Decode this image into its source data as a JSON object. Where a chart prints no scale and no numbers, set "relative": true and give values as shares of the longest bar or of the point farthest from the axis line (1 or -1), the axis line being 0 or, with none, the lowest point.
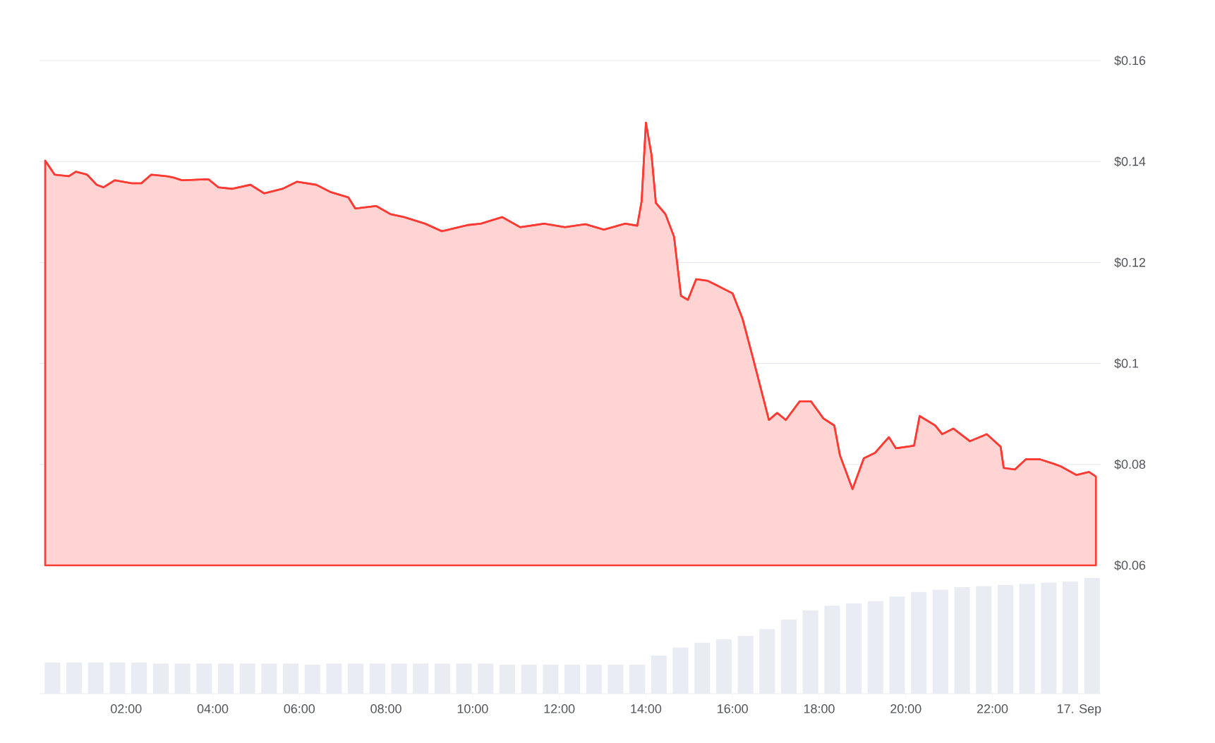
{
  "chart_data": [
    {
      "type": "area",
      "color": "#ff3a33",
      "grid": "y",
      "tick_labels": "y",
      "xlim": [
        0,
        24.5
      ],
      "ylim": [
        0.06,
        0.16
      ],
      "yticks": [
        {
          "value": 0.06,
          "label": "$0.06"
        },
        {
          "value": 0.08,
          "label": "$0.08"
        },
        {
          "value": 0.1,
          "label": "$0.1"
        },
        {
          "value": 0.12,
          "label": "$0.12"
        },
        {
          "value": 0.14,
          "label": "$0.14"
        },
        {
          "value": 0.16,
          "label": "$0.16"
        }
      ],
      "x": [
        0.13,
        0.35,
        0.68,
        0.84,
        1.1,
        1.32,
        1.48,
        1.74,
        2.13,
        2.35,
        2.58,
        2.94,
        3.1,
        3.29,
        3.9,
        4.13,
        4.45,
        4.87,
        5.19,
        5.61,
        5.94,
        6.39,
        6.71,
        7.13,
        7.29,
        7.77,
        8.1,
        8.42,
        8.9,
        9.29,
        9.87,
        10.19,
        10.68,
        11.1,
        11.65,
        12.13,
        12.6,
        13.03,
        13.52,
        13.8,
        13.9,
        14.0,
        14.13,
        14.23,
        14.45,
        14.65,
        14.81,
        14.97,
        15.16,
        15.42,
        15.68,
        16.0,
        16.23,
        16.48,
        16.84,
        17.03,
        17.23,
        17.55,
        17.81,
        18.1,
        18.35,
        18.48,
        18.77,
        19.03,
        19.29,
        19.61,
        19.77,
        20.19,
        20.32,
        20.68,
        20.84,
        21.1,
        21.48,
        21.87,
        22.19,
        22.26,
        22.52,
        22.77,
        23.1,
        23.42,
        23.58,
        23.94,
        24.23,
        24.39
      ],
      "values": [
        0.1402,
        0.1374,
        0.1371,
        0.138,
        0.1374,
        0.1354,
        0.1349,
        0.1363,
        0.1357,
        0.1357,
        0.1374,
        0.1371,
        0.1368,
        0.1363,
        0.1365,
        0.1349,
        0.1346,
        0.1354,
        0.1337,
        0.1346,
        0.136,
        0.1354,
        0.134,
        0.1329,
        0.1307,
        0.1312,
        0.1296,
        0.129,
        0.1277,
        0.1262,
        0.1274,
        0.1277,
        0.129,
        0.127,
        0.1277,
        0.127,
        0.1276,
        0.1265,
        0.1277,
        0.1273,
        0.1321,
        0.1477,
        0.1413,
        0.1318,
        0.1296,
        0.1251,
        0.1134,
        0.1126,
        0.1167,
        0.1164,
        0.1153,
        0.1139,
        0.1089,
        0.1008,
        0.0888,
        0.0902,
        0.0888,
        0.0925,
        0.0925,
        0.0891,
        0.0877,
        0.0818,
        0.0751,
        0.0812,
        0.0823,
        0.0854,
        0.0832,
        0.0837,
        0.0896,
        0.0877,
        0.086,
        0.0871,
        0.0846,
        0.086,
        0.0835,
        0.0793,
        0.079,
        0.081,
        0.081,
        0.0801,
        0.0796,
        0.0779,
        0.0785,
        0.0776
      ]
    },
    {
      "type": "bar",
      "relative": true,
      "color": "#e9edf3",
      "tick_labels": "x",
      "xlim": [
        0,
        24.5
      ],
      "xticks": [
        {
          "value": 2,
          "label": "02:00"
        },
        {
          "value": 4,
          "label": "04:00"
        },
        {
          "value": 6,
          "label": "06:00"
        },
        {
          "value": 8,
          "label": "08:00"
        },
        {
          "value": 10,
          "label": "10:00"
        },
        {
          "value": 12,
          "label": "12:00"
        },
        {
          "value": 14,
          "label": "14:00"
        },
        {
          "value": 16,
          "label": "16:00"
        },
        {
          "value": 18,
          "label": "18:00"
        },
        {
          "value": 20,
          "label": "20:00"
        },
        {
          "value": 22,
          "label": "22:00"
        },
        {
          "value": 24,
          "label": "17. Sep"
        }
      ],
      "x": [
        0.3,
        0.8,
        1.3,
        1.8,
        2.3,
        2.8,
        3.3,
        3.8,
        4.3,
        4.8,
        5.3,
        5.8,
        6.3,
        6.8,
        7.3,
        7.8,
        8.3,
        8.8,
        9.3,
        9.8,
        10.3,
        10.8,
        11.3,
        11.8,
        12.3,
        12.8,
        13.3,
        13.8,
        14.3,
        14.8,
        15.3,
        15.8,
        16.3,
        16.8,
        17.3,
        17.8,
        18.3,
        18.8,
        19.3,
        19.8,
        20.3,
        20.8,
        21.3,
        21.8,
        22.3,
        22.8,
        23.3,
        23.8,
        24.3
      ],
      "values": [
        0.27,
        0.27,
        0.27,
        0.27,
        0.27,
        0.26,
        0.26,
        0.26,
        0.26,
        0.26,
        0.26,
        0.26,
        0.25,
        0.26,
        0.26,
        0.26,
        0.26,
        0.26,
        0.26,
        0.26,
        0.26,
        0.25,
        0.25,
        0.25,
        0.25,
        0.25,
        0.25,
        0.25,
        0.33,
        0.4,
        0.44,
        0.47,
        0.5,
        0.56,
        0.64,
        0.72,
        0.76,
        0.78,
        0.8,
        0.84,
        0.88,
        0.9,
        0.92,
        0.93,
        0.94,
        0.95,
        0.96,
        0.97,
        1
      ]
    }
  ]
}
